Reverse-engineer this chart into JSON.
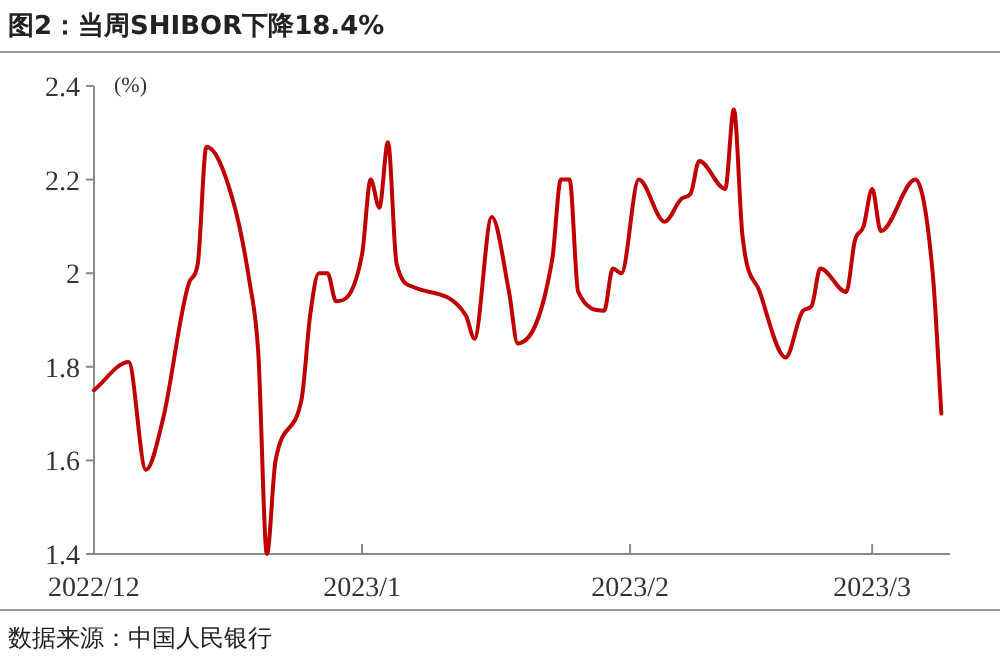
{
  "chart_data": {
    "type": "line",
    "title": "图2：当周SHIBOR下降18.4%",
    "ylabel": "(%)",
    "annotations": [
      "数据来源：中国人民银行"
    ],
    "x": [
      "2022-12-01",
      "2022-12-05",
      "2022-12-07",
      "2022-12-09",
      "2022-12-12",
      "2022-12-13",
      "2022-12-14",
      "2022-12-17",
      "2022-12-19",
      "2022-12-20",
      "2022-12-21",
      "2022-12-22",
      "2022-12-25",
      "2022-12-26",
      "2022-12-27",
      "2022-12-28",
      "2022-12-29",
      "2023-01-01",
      "2023-01-02",
      "2023-01-03",
      "2023-01-04",
      "2023-01-05",
      "2023-01-07",
      "2023-01-13",
      "2023-01-14",
      "2023-01-16",
      "2023-01-18",
      "2023-01-19",
      "2023-01-23",
      "2023-01-24",
      "2023-01-25",
      "2023-01-26",
      "2023-01-29",
      "2023-01-30",
      "2023-01-31",
      "2023-02-02",
      "2023-02-05",
      "2023-02-07",
      "2023-02-08",
      "2023-02-09",
      "2023-02-12",
      "2023-02-13",
      "2023-02-14",
      "2023-02-16",
      "2023-02-19",
      "2023-02-21",
      "2023-02-22",
      "2023-02-23",
      "2023-02-26",
      "2023-02-27",
      "2023-02-28",
      "2023-03-01",
      "2023-03-02",
      "2023-03-06",
      "2023-03-08",
      "2023-03-09"
    ],
    "series": [
      {
        "color": "#c00000",
        "values": [
          1.75,
          1.81,
          1.58,
          1.69,
          1.98,
          2.02,
          2.27,
          2.16,
          1.98,
          1.83,
          1.4,
          1.6,
          1.73,
          1.91,
          2.0,
          2.0,
          1.94,
          2.04,
          2.2,
          2.14,
          2.28,
          2.02,
          1.97,
          1.91,
          1.86,
          2.12,
          1.96,
          1.85,
          2.03,
          2.2,
          2.2,
          1.96,
          1.92,
          2.01,
          2.0,
          2.2,
          2.11,
          2.16,
          2.17,
          2.24,
          2.18,
          2.35,
          2.08,
          1.96,
          1.82,
          1.92,
          1.93,
          2.01,
          1.96,
          2.07,
          2.1,
          2.18,
          2.09,
          2.2,
          2.0,
          1.7
        ]
      }
    ],
    "xlim": [
      "2022-12-01",
      "2023-03-10"
    ],
    "xticks": [
      {
        "value": "2022-12-01",
        "label": "2022/12"
      },
      {
        "value": "2023-01-01",
        "label": "2023/1"
      },
      {
        "value": "2023-02-01",
        "label": "2023/2"
      },
      {
        "value": "2023-03-01",
        "label": "2023/3"
      }
    ],
    "ylim": [
      1.4,
      2.4
    ],
    "yticks": [
      1.4,
      1.6,
      1.8,
      2,
      2.2,
      2.4
    ],
    "grid": false,
    "marker": "none",
    "line_style": "solid"
  }
}
